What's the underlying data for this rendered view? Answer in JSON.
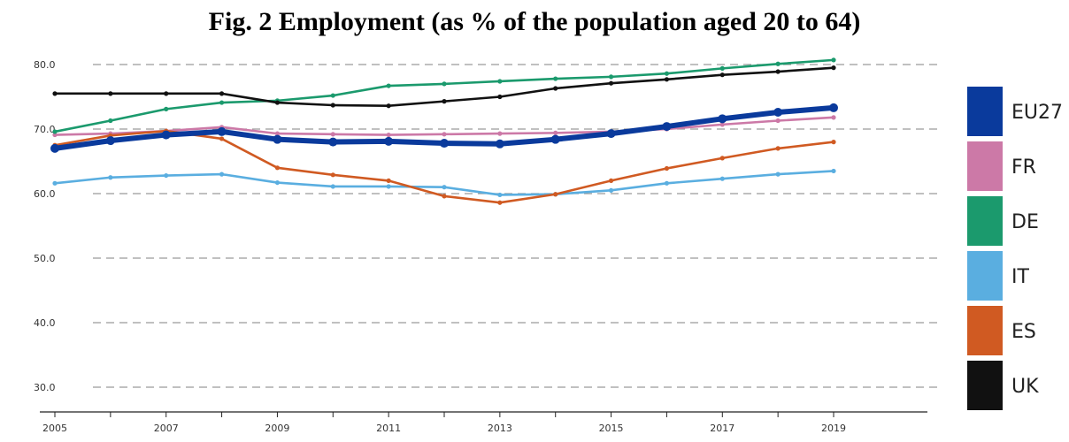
{
  "chart_data": {
    "type": "line",
    "title": "Fig. 2 Employment (as % of the population aged 20 to 64)",
    "x": [
      2005,
      2006,
      2007,
      2008,
      2009,
      2010,
      2011,
      2012,
      2013,
      2014,
      2015,
      2016,
      2017,
      2018,
      2019
    ],
    "x_tick_labels": [
      "2005",
      "2007",
      "2009",
      "2011",
      "2013",
      "2015",
      "2017",
      "2019"
    ],
    "y_tick_labels": [
      "30.0",
      "40.0",
      "50.0",
      "60.0",
      "70.0",
      "80.0"
    ],
    "ylim": [
      30,
      80
    ],
    "grid": "horizontal dashed",
    "legend": "right",
    "series": [
      {
        "name": "EU27",
        "color": "#0a3a9c",
        "emphasis": true,
        "values": [
          67.0,
          68.2,
          69.1,
          69.6,
          68.4,
          68.0,
          68.1,
          67.8,
          67.7,
          68.4,
          69.3,
          70.4,
          71.6,
          72.6,
          73.3
        ]
      },
      {
        "name": "FR",
        "color": "#cc79a7",
        "values": [
          69.1,
          69.3,
          69.7,
          70.3,
          69.3,
          69.2,
          69.1,
          69.2,
          69.3,
          69.4,
          69.6,
          70.0,
          70.7,
          71.3,
          71.8
        ]
      },
      {
        "name": "DE",
        "color": "#1b9a6d",
        "values": [
          69.6,
          71.3,
          73.1,
          74.1,
          74.4,
          75.2,
          76.7,
          77.0,
          77.4,
          77.8,
          78.1,
          78.6,
          79.4,
          80.1,
          80.7
        ]
      },
      {
        "name": "IT",
        "color": "#5aaee0",
        "values": [
          61.6,
          62.5,
          62.8,
          63.0,
          61.7,
          61.1,
          61.1,
          61.0,
          59.8,
          59.9,
          60.5,
          61.6,
          62.3,
          63.0,
          63.5
        ]
      },
      {
        "name": "ES",
        "color": "#d05a22",
        "values": [
          67.5,
          69.0,
          69.7,
          68.5,
          64.0,
          62.9,
          62.0,
          59.6,
          58.6,
          59.9,
          62.0,
          63.9,
          65.5,
          67.0,
          68.0
        ]
      },
      {
        "name": "UK",
        "color": "#111111",
        "values": [
          75.5,
          75.5,
          75.5,
          75.5,
          74.1,
          73.7,
          73.6,
          74.3,
          75.0,
          76.3,
          77.1,
          77.7,
          78.4,
          78.9,
          79.5
        ]
      }
    ]
  }
}
